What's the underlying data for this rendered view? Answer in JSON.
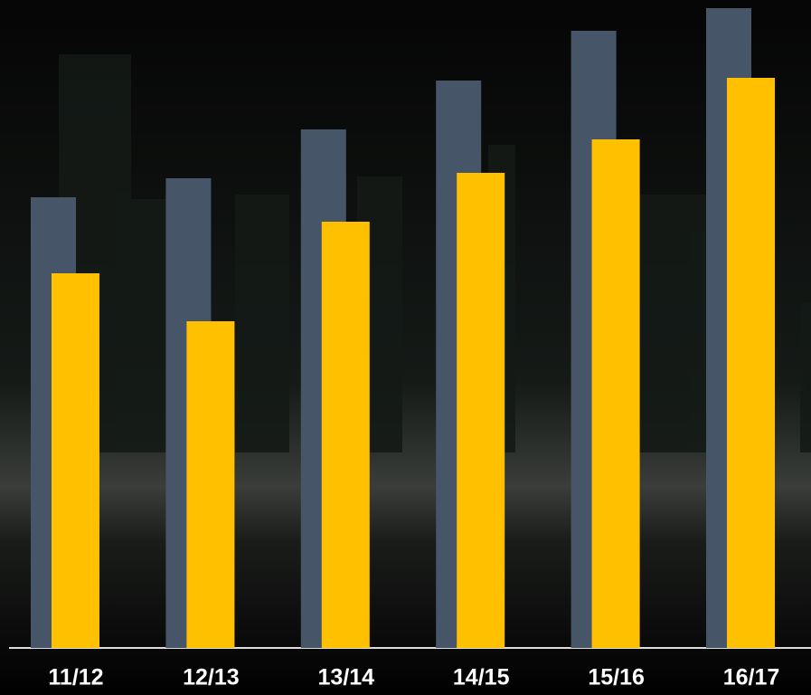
{
  "chart_data": {
    "type": "bar",
    "categories": [
      "11/12",
      "12/13",
      "13/14",
      "14/15",
      "15/16",
      "16/17"
    ],
    "series": [
      {
        "color": "#475569",
        "values": [
          498,
          519,
          573,
          627,
          682,
          707
        ]
      },
      {
        "color": "#ffc000",
        "values": [
          414,
          361,
          471,
          525,
          562,
          630
        ]
      }
    ],
    "ylim": [
      0,
      716
    ]
  }
}
